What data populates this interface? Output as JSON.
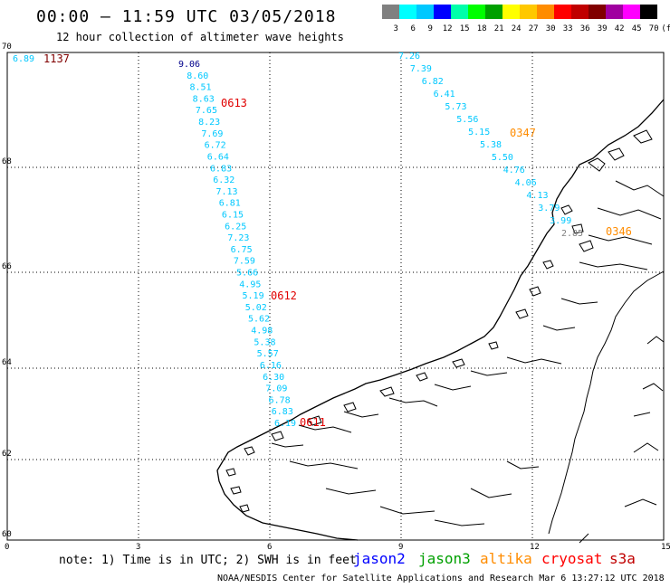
{
  "header": {
    "title": "00:00 – 11:59 UTC 03/05/2018",
    "subtitle": "12 hour collection of altimeter wave heights"
  },
  "colorbar": {
    "colors": [
      "#808080",
      "#00ffff",
      "#00c8ff",
      "#0000ff",
      "#00ffaa",
      "#00ff00",
      "#00a000",
      "#ffff00",
      "#ffc800",
      "#ff8c00",
      "#ff0000",
      "#c00000",
      "#800000",
      "#a000a0",
      "#ff00ff",
      "#000000"
    ],
    "labels": [
      "3",
      "6",
      "9",
      "12",
      "15",
      "18",
      "21",
      "24",
      "27",
      "30",
      "33",
      "36",
      "39",
      "42",
      "45",
      "70",
      "(ft)"
    ]
  },
  "axes": {
    "lon_ticks": [
      "0",
      "3",
      "6",
      "9",
      "12",
      "15"
    ],
    "lat_ticks": [
      "70",
      "68",
      "66",
      "64",
      "62",
      "60"
    ]
  },
  "tracks": {
    "jason2": {
      "color": "#00008b",
      "start_value": "9.06",
      "values": [
        "8.60",
        "8.51",
        "8.63",
        "7.65",
        "8.23",
        "7.69",
        "6.72",
        "6.64",
        "6.83",
        "6.32",
        "7.13",
        "6.81",
        "6.15",
        "6.25",
        "7.23",
        "6.75",
        "7.59",
        "5.66",
        "4.95",
        "5.19",
        "5.02",
        "5.62",
        "4.98",
        "5.38",
        "5.57",
        "6.16",
        "6.30",
        "7.09",
        "6.78",
        "6.83",
        "6.19"
      ],
      "time_labels": [
        "0613",
        "0612",
        "0611"
      ]
    },
    "altika": {
      "color": "#00c8ff",
      "values": [
        "7.26",
        "7.39",
        "6.82",
        "6.41",
        "5.73",
        "5.56",
        "5.15",
        "5.38",
        "5.50",
        "4.76",
        "4.06",
        "4.13",
        "3.79",
        "3.99",
        "2.85"
      ],
      "time_labels": [
        "0347",
        "0346"
      ]
    },
    "top_left": {
      "value": "6.89",
      "time_label": "1137"
    }
  },
  "footer": {
    "note": "note: 1) Time is in UTC; 2) SWH is in feet",
    "legend": [
      {
        "label": "jason2",
        "color": "#0000ff"
      },
      {
        "label": "jason3",
        "color": "#00a000"
      },
      {
        "label": "altika",
        "color": "#ff8c00"
      },
      {
        "label": "cryosat",
        "color": "#ff0000"
      },
      {
        "label": "s3a",
        "color": "#c00000"
      }
    ],
    "credit": "NOAA/NESDIS Center for Satellite Applications and Research   Mar  6 13:27:12 UTC 2018"
  }
}
